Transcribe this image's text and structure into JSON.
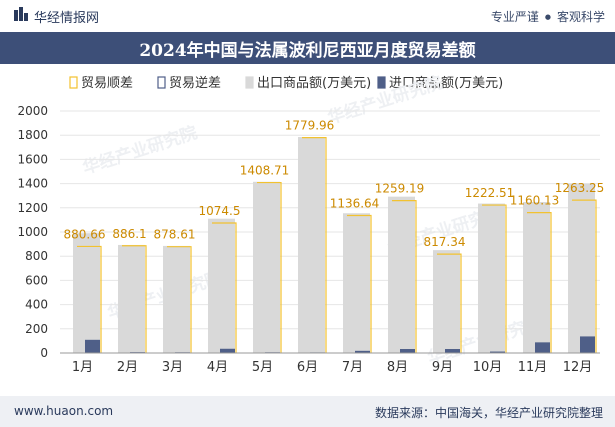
{
  "header": {
    "site_name": "华经情报网",
    "logo_icon": "bar-logo-icon",
    "slogan_left": "专业严谨",
    "slogan_sep": "●",
    "slogan_right": "客观科学"
  },
  "footer": {
    "website": "www.huaon.com",
    "source": "数据来源：中国海关，华经产业研究院整理"
  },
  "watermark": "华经产业研究院",
  "colors": {
    "title_band": "#3d4f78",
    "trade_balance": "#f2c230",
    "exports": "#d9d9d9",
    "imports": "#4f5f88"
  },
  "chart_data": {
    "type": "bar",
    "title": "2024年中国与法属波利尼西亚月度贸易差额",
    "categories": [
      "1月",
      "2月",
      "3月",
      "4月",
      "5月",
      "6月",
      "7月",
      "8月",
      "9月",
      "10月",
      "11月",
      "12月"
    ],
    "series": [
      {
        "name": "贸易顺差",
        "values": [
          880.66,
          886.1,
          878.61,
          1074.5,
          1408.71,
          1779.96,
          1136.64,
          1259.19,
          817.34,
          1222.51,
          1160.13,
          1263.25
        ]
      },
      {
        "name": "贸易逆差",
        "values": [
          0,
          0,
          0,
          0,
          0,
          0,
          0,
          0,
          0,
          0,
          0,
          0
        ]
      },
      {
        "name": "出口商品额(万美元)",
        "values": [
          990,
          893,
          885,
          1110,
          1415,
          1785,
          1155,
          1292,
          850,
          1235,
          1248,
          1400
        ]
      },
      {
        "name": "进口商品额(万美元)",
        "values": [
          109,
          7,
          6,
          35,
          6,
          5,
          18,
          33,
          33,
          12,
          88,
          137
        ]
      }
    ],
    "data_labels": [
      "880.66",
      "886.1",
      "878.61",
      "1074.5",
      "1408.71",
      "1779.96",
      "1136.64",
      "1259.19",
      "817.34",
      "1222.51",
      "1160.13",
      "1263.25"
    ],
    "yticks": [
      "0",
      "200",
      "400",
      "600",
      "800",
      "1000",
      "1200",
      "1400",
      "1600",
      "1800",
      "2000"
    ],
    "ylim": [
      0,
      2000
    ],
    "legend_position": "top"
  }
}
